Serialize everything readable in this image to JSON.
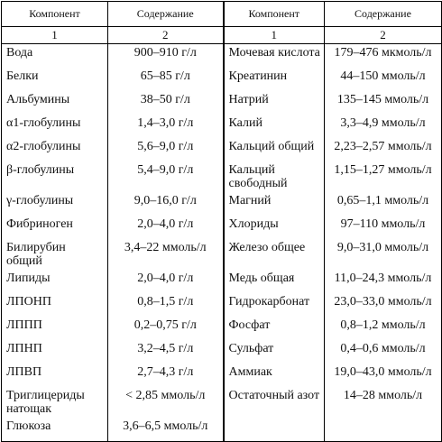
{
  "headers": [
    "Компонент",
    "Содержание",
    "Компонент",
    "Содержание"
  ],
  "numbers": [
    "1",
    "2",
    "1",
    "2"
  ],
  "rows": [
    {
      "l_name": "Вода",
      "l_value": "900–910 г/л",
      "r_name": "Мочевая кислота",
      "r_value": "179–476 мкмоль/л"
    },
    {
      "l_name": "Белки",
      "l_value": "65–85 г/л",
      "r_name": "Креатинин",
      "r_value": "44–150 ммоль/л"
    },
    {
      "l_name": "Альбумины",
      "l_value": "38–50 г/л",
      "r_name": "Натрий",
      "r_value": "135–145 ммоль/л"
    },
    {
      "l_name": "α1-глобулины",
      "l_value": "1,4–3,0 г/л",
      "r_name": "Калий",
      "r_value": "3,3–4,9 ммоль/л"
    },
    {
      "l_name": "α2-глобулины",
      "l_value": "5,6–9,0 г/л",
      "r_name": "Кальций общий",
      "r_value": "2,23–2,57 ммоль/л"
    },
    {
      "l_name": "β-глобулины",
      "l_value": "5,4–9,0 г/л",
      "r_name": "Кальций свободный",
      "r_value": "1,15–1,27 ммоль/л"
    },
    {
      "l_name": "γ-глобулины",
      "l_value": "9,0–16,0 г/л",
      "r_name": "Магний",
      "r_value": "0,65–1,1 ммоль/л"
    },
    {
      "l_name": "Фибриноген",
      "l_value": "2,0–4,0 г/л",
      "r_name": "Хлориды",
      "r_value": "97–110 ммоль/л"
    },
    {
      "l_name": "Билирубин общий",
      "l_value": "3,4–22 ммоль/л",
      "r_name": "Железо общее",
      "r_value": "9,0–31,0 ммоль/л"
    },
    {
      "l_name": "Липиды",
      "l_value": "2,0–4,0 г/л",
      "r_name": "Медь общая",
      "r_value": "11,0–24,3 ммоль/л"
    },
    {
      "l_name": "ЛПОНП",
      "l_value": "0,8–1,5 г/л",
      "r_name": "Гидрокарбонат",
      "r_value": "23,0–33,0 ммоль/л"
    },
    {
      "l_name": "ЛППП",
      "l_value": "0,2–0,75 г/л",
      "r_name": "Фосфат",
      "r_value": "0,8–1,2 ммоль/л"
    },
    {
      "l_name": "ЛПНП",
      "l_value": "3,2–4,5 г/л",
      "r_name": "Сульфат",
      "r_value": "0,4–0,6 ммоль/л"
    },
    {
      "l_name": "ЛПВП",
      "l_value": "2,7–4,3 г/л",
      "r_name": "Аммиак",
      "r_value": "19,0–43,0 ммоль/л"
    },
    {
      "l_name": "Триглицериды натощак",
      "l_value": "< 2,85 ммоль/л",
      "r_name": "Остаточный азот",
      "r_value": "14–28 ммоль/л"
    },
    {
      "l_name": "Глюкоза",
      "l_value": "3,6–6,5 ммоль/л",
      "r_name": "",
      "r_value": ""
    }
  ]
}
